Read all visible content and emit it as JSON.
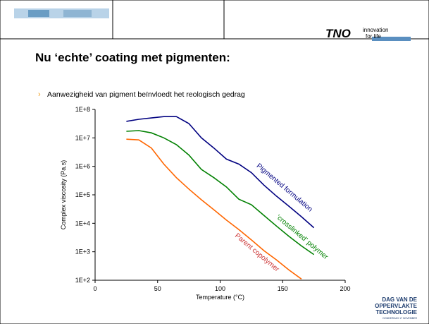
{
  "slide": {
    "title": "Nu ‘echte’ coating met pigmenten:",
    "bullet": "Aanwezigheid van pigment beïnvloedt het reologisch gedrag",
    "logo": {
      "brand": "TNO",
      "tagline": [
        "innovation",
        "for life"
      ]
    },
    "event": [
      "DAG VAN DE",
      "OPPERVLAKTE",
      "TECHNOLOGIE",
      "DONDERDAG 17 NOVEMBER"
    ]
  },
  "chart_data": {
    "type": "line",
    "x_label": "Temperature  (°C)",
    "y_label": "Complex viscosity   (Pa.s)",
    "x": [
      25,
      35,
      45,
      55,
      65,
      75,
      85,
      95,
      105,
      115,
      125,
      135,
      145,
      155,
      165,
      175
    ],
    "xlim": [
      0,
      200
    ],
    "xticks": [
      0,
      50,
      100,
      150,
      200
    ],
    "ylim": [
      100,
      100000000
    ],
    "log_y": true,
    "yticks": [
      {
        "value": 100,
        "label": "1E+2"
      },
      {
        "value": 1000,
        "label": "1E+3"
      },
      {
        "value": 10000,
        "label": "1E+4"
      },
      {
        "value": 100000,
        "label": "1E+5"
      },
      {
        "value": 1000000,
        "label": "1E+6"
      },
      {
        "value": 10000000,
        "label": "1E+7"
      },
      {
        "value": 100000000,
        "label": "1E+8"
      }
    ],
    "series": [
      {
        "name": "Pigmented formulation",
        "color": "#000080",
        "label_color": "#000080",
        "values": [
          38000000,
          45000000,
          50000000,
          56000000,
          56000000,
          32000000,
          10000000,
          4400000,
          1800000,
          1200000,
          600000,
          220000,
          90000,
          40000,
          17000,
          7000
        ]
      },
      {
        "name": "‘crosslinked’ polymer",
        "color": "#008000",
        "label_color": "#008000",
        "values": [
          17000000,
          18000000,
          15000000,
          10000000,
          5800000,
          2500000,
          780000,
          400000,
          190000,
          70000,
          45000,
          19000,
          8000,
          3500,
          1600,
          800
        ]
      },
      {
        "name": "Parent copolymer",
        "color": "#ff6600",
        "label_color": "#cc3333",
        "values": [
          9000000,
          8500000,
          4400000,
          1200000,
          400000,
          160000,
          67000,
          30000,
          13000,
          6000,
          2600,
          1100,
          520,
          230,
          110,
          null
        ]
      }
    ]
  }
}
